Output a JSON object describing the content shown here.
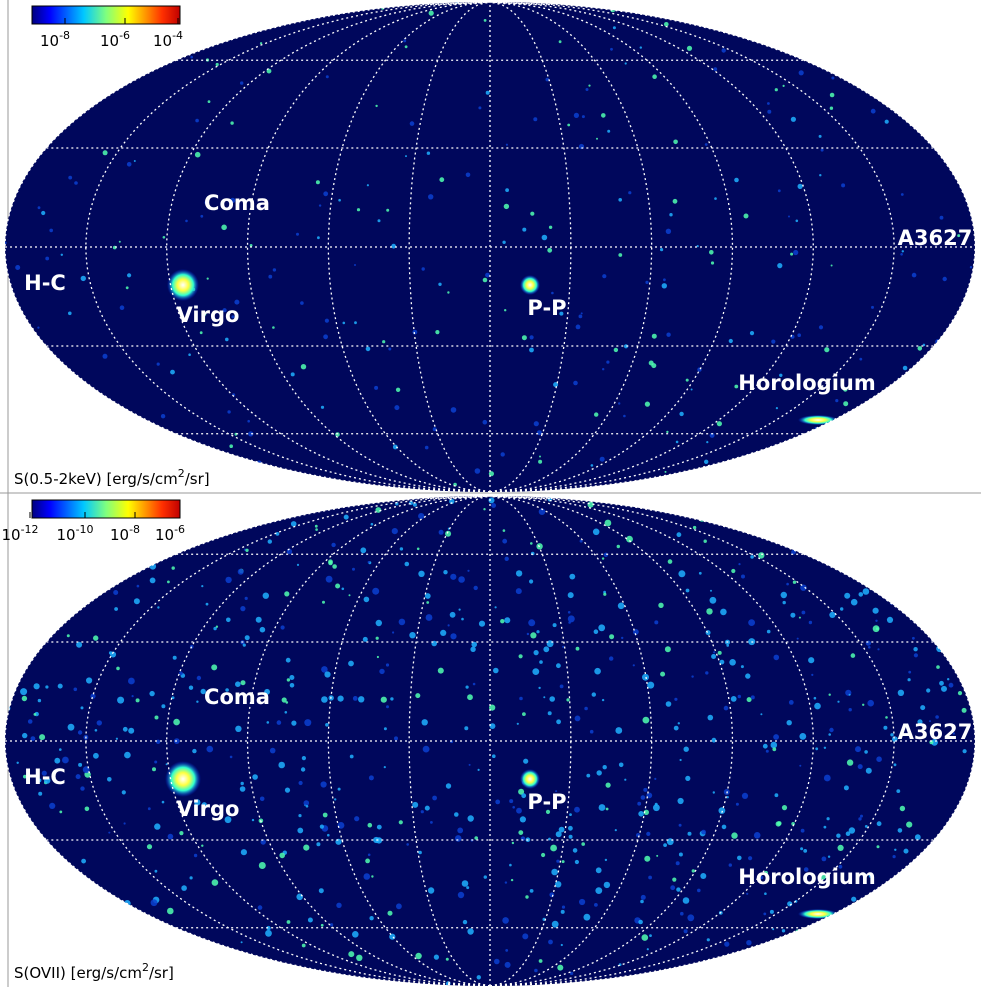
{
  "panels": [
    {
      "colorbar_ticks": [
        {
          "base": "10",
          "exponent": "-8"
        },
        {
          "base": "10",
          "exponent": "-6"
        },
        {
          "base": "10",
          "exponent": "-4"
        }
      ],
      "labels": [
        "Coma",
        "H-C",
        "Virgo",
        "P-P",
        "A3627",
        "Horologium"
      ],
      "quantity": {
        "before": "S(0.5-2keV) [erg/s/cm",
        "superscript": "2",
        "after": "/sr]"
      }
    },
    {
      "colorbar_ticks": [
        {
          "base": "10",
          "exponent": "-12"
        },
        {
          "base": "10",
          "exponent": "-10"
        },
        {
          "base": "10",
          "exponent": "-8"
        },
        {
          "base": "10",
          "exponent": "-6"
        }
      ],
      "labels": [
        "Coma",
        "H-C",
        "Virgo",
        "P-P",
        "A3627",
        "Horologium"
      ],
      "quantity": {
        "before": "S(OVII) [erg/s/cm",
        "superscript": "2",
        "after": "/sr]"
      }
    }
  ]
}
